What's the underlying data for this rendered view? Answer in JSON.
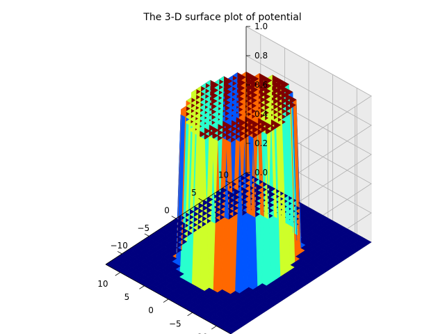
{
  "chart_data": {
    "type": "surface3d",
    "title": "The 3-D surface plot of potential",
    "xlabel": "",
    "ylabel": "",
    "zlabel": "",
    "xlim": [
      -13,
      13
    ],
    "ylim": [
      -13,
      13
    ],
    "zlim": [
      0,
      1
    ],
    "x_ticks": [
      -10,
      -5,
      0,
      5,
      10
    ],
    "y_ticks": [
      -10,
      -5,
      0,
      5,
      10
    ],
    "z_ticks": [
      0.0,
      0.2,
      0.4,
      0.6,
      0.8,
      1.0
    ],
    "z_tick_labels": [
      "0.0",
      "0.2",
      "0.4",
      "0.6",
      "0.8",
      "1.0"
    ],
    "grid": true,
    "colormap": "jet",
    "surface": {
      "description_values": {
        "inner_radius": 8,
        "inner_value": 1.0,
        "outer_value": 0.0
      }
    },
    "colors": {
      "low": "#00007f",
      "top": "#7f0000",
      "wall_cyan": "#29ffce",
      "wall_blue": "#0055ff",
      "wall_orange": "#ff6800",
      "wall_yellow": "#ceff29"
    }
  }
}
